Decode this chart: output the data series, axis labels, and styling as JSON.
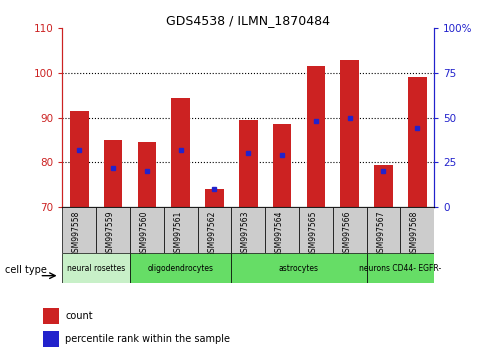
{
  "title": "GDS4538 / ILMN_1870484",
  "samples": [
    "GSM997558",
    "GSM997559",
    "GSM997560",
    "GSM997561",
    "GSM997562",
    "GSM997563",
    "GSM997564",
    "GSM997565",
    "GSM997566",
    "GSM997567",
    "GSM997568"
  ],
  "counts": [
    91.5,
    85.0,
    84.5,
    94.5,
    74.0,
    89.5,
    88.5,
    101.5,
    103.0,
    79.5,
    99.0
  ],
  "percentile_ranks": [
    32,
    22,
    20,
    32,
    10,
    30,
    29,
    48,
    50,
    20,
    44
  ],
  "ylim_left": [
    70,
    110
  ],
  "ylim_right": [
    0,
    100
  ],
  "yticks_left": [
    70,
    80,
    90,
    100,
    110
  ],
  "yticks_right": [
    0,
    25,
    50,
    75,
    100
  ],
  "yticklabels_right": [
    "0",
    "25",
    "50",
    "75",
    "100%"
  ],
  "bar_color": "#cc2222",
  "marker_color": "#2222cc",
  "bar_bottom": 70,
  "group_boundaries": [
    {
      "start": 0,
      "end": 2,
      "label": "neural rosettes",
      "color": "#c8f0c8"
    },
    {
      "start": 2,
      "end": 5,
      "label": "oligodendrocytes",
      "color": "#66dd66"
    },
    {
      "start": 5,
      "end": 9,
      "label": "astrocytes",
      "color": "#66dd66"
    },
    {
      "start": 9,
      "end": 11,
      "label": "neurons CD44- EGFR-",
      "color": "#66dd66"
    }
  ],
  "cell_type_row_label": "cell type",
  "legend_count_label": "count",
  "legend_percentile_label": "percentile rank within the sample",
  "axis_left_color": "#cc2222",
  "axis_right_color": "#2222cc",
  "bg_xtick": "#cccccc"
}
